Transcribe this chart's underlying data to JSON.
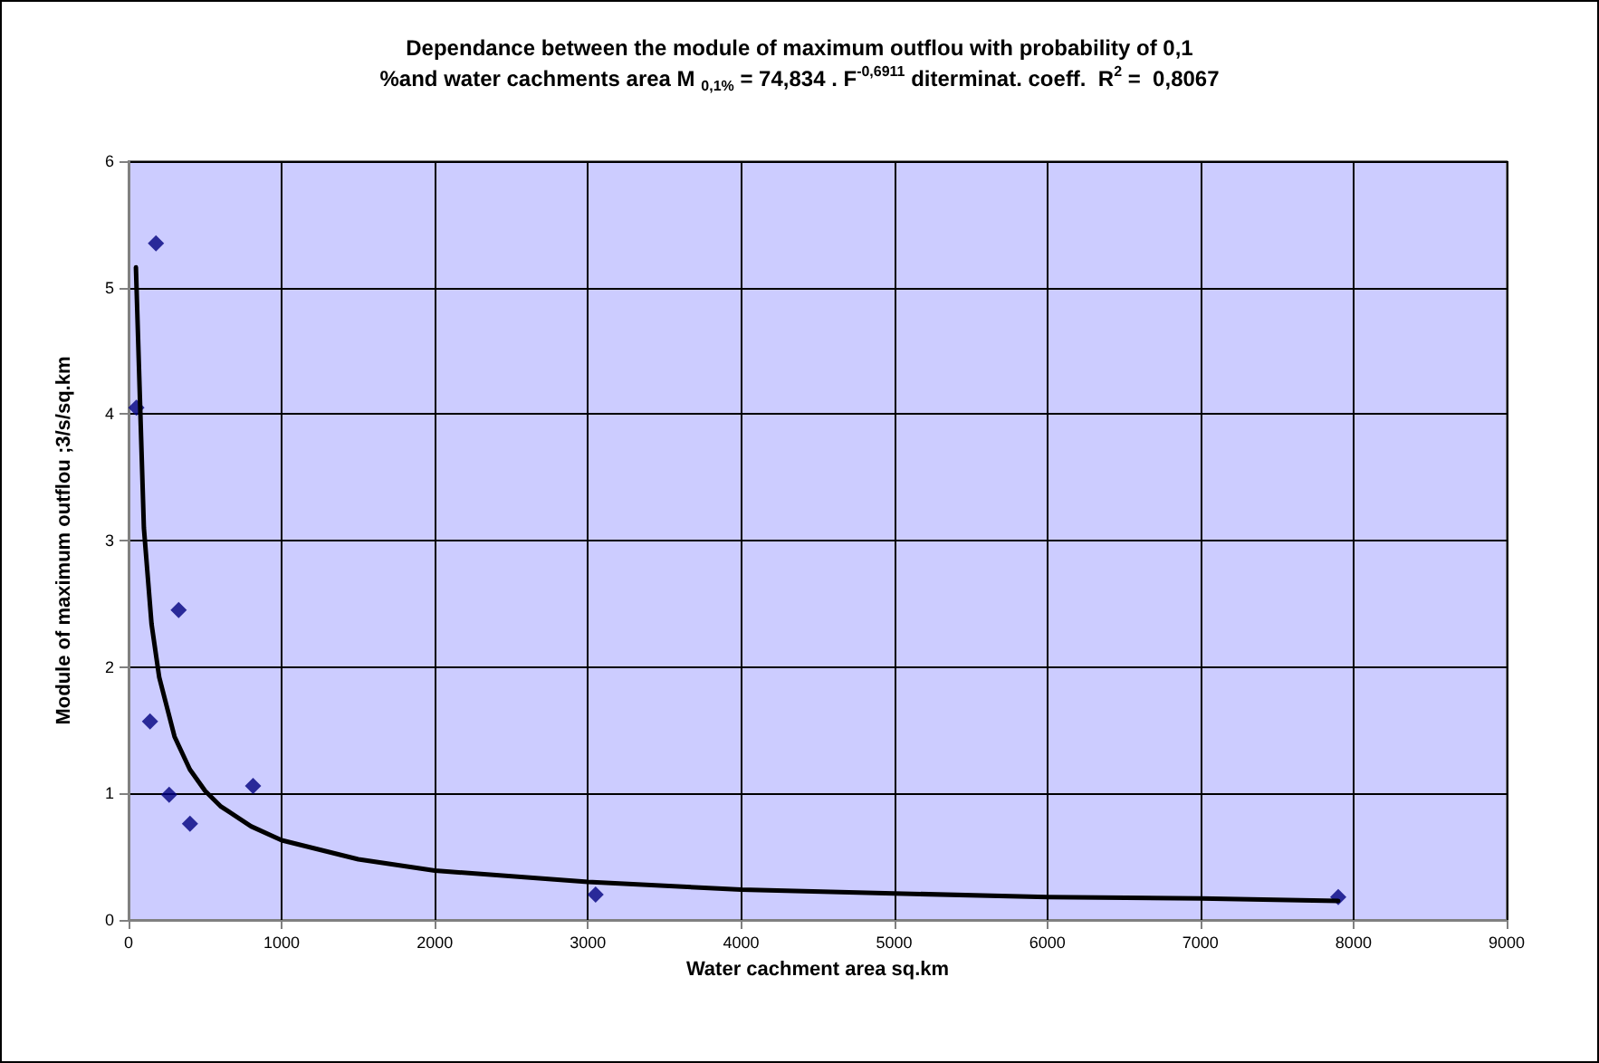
{
  "chart_data": {
    "type": "scatter",
    "title": "Dependance between the module of maximum outflou with probability of 0,1\n%and water cachments area M $_{0,1%}$ = 74,834 . F$^{-0,6911}$ diterminat. coeff.  R$^{2}$ =  0,8067",
    "xlabel": "Water cachment area sq.km",
    "ylabel": "Module of maximum outflou ;3/s/sq.km",
    "series": [
      {
        "color": "#000080",
        "marker": "diamond",
        "x": [
          51,
          179,
          140,
          265,
          327,
          401,
          813,
          3050,
          7900
        ],
        "values": [
          4.05,
          5.35,
          1.57,
          0.99,
          2.45,
          0.76,
          1.06,
          0.2,
          0.18
        ]
      },
      {
        "type": "line",
        "color": "#000000",
        "marker": "none",
        "line_style": "solid",
        "x": [
          48,
          100,
          150,
          200,
          300,
          400,
          500,
          600,
          800,
          1000,
          1500,
          2000,
          3000,
          4000,
          5000,
          6000,
          7000,
          7900
        ],
        "values": [
          5.16,
          3.1,
          2.34,
          1.92,
          1.45,
          1.19,
          1.02,
          0.9,
          0.74,
          0.63,
          0.48,
          0.39,
          0.3,
          0.24,
          0.21,
          0.18,
          0.17,
          0.15
        ]
      }
    ],
    "xlim": [
      0,
      9000
    ],
    "xticks": [
      0,
      1000,
      2000,
      3000,
      4000,
      5000,
      6000,
      7000,
      8000,
      9000
    ],
    "ylim": [
      0,
      6
    ],
    "yticks": [
      0,
      1,
      2,
      3,
      4,
      5,
      6
    ],
    "grid": true
  }
}
